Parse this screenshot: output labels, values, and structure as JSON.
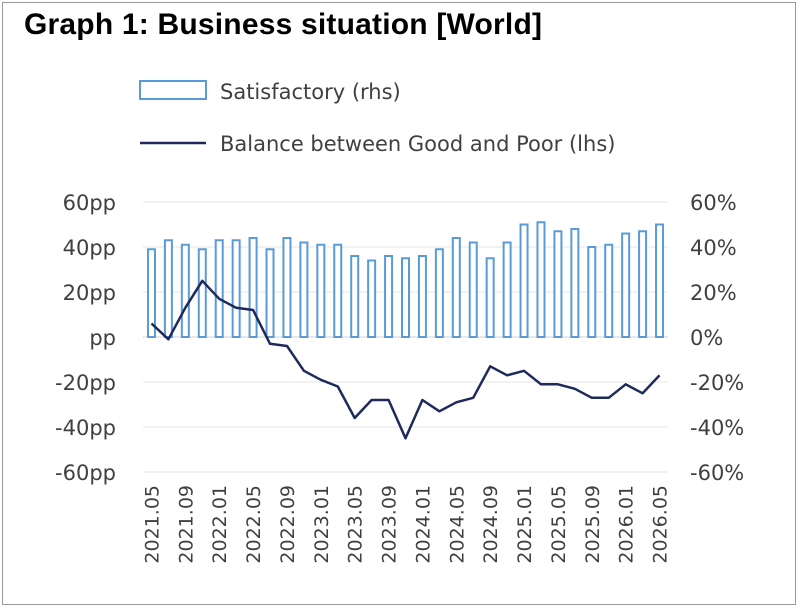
{
  "title": "Graph 1: Business situation [World]",
  "chart_data": {
    "type": "bar+line",
    "title": "Graph 1: Business situation [World]",
    "categories": [
      "2021.05",
      "2021.07",
      "2021.09",
      "2021.11",
      "2022.01",
      "2022.03",
      "2022.05",
      "2022.07",
      "2022.09",
      "2022.11",
      "2023.01",
      "2023.03",
      "2023.05",
      "2023.07",
      "2023.09",
      "2023.11",
      "2024.01",
      "2024.03",
      "2024.05",
      "2024.07",
      "2024.09",
      "2024.11",
      "2025.01",
      "2025.03",
      "2025.05",
      "2025.07",
      "2025.09",
      "2025.11",
      "2026.01",
      "2026.03",
      "2026.05"
    ],
    "x_tick_labels": [
      "2021.05",
      "2021.09",
      "2022.01",
      "2022.05",
      "2022.09",
      "2023.01",
      "2023.05",
      "2023.09",
      "2024.01",
      "2024.05",
      "2024.09",
      "2025.01",
      "2025.05",
      "2025.09",
      "2026.01",
      "2026.05"
    ],
    "series": [
      {
        "name": "Satisfactory (rhs)",
        "type": "bar",
        "axis": "right",
        "color": "#5b9bd5",
        "values": [
          39,
          43,
          41,
          39,
          43,
          43,
          44,
          39,
          44,
          42,
          41,
          41,
          36,
          34,
          36,
          35,
          36,
          39,
          44,
          42,
          35,
          42,
          50,
          51,
          47,
          48,
          40,
          41,
          46,
          47,
          50
        ]
      },
      {
        "name": "Balance between Good and Poor (lhs)",
        "type": "line",
        "axis": "left",
        "color": "#1f2a5c",
        "values": [
          6,
          -1,
          13,
          25,
          17,
          13,
          12,
          -3,
          -4,
          -15,
          -19,
          -22,
          -36,
          -28,
          -28,
          -45,
          -28,
          -33,
          -29,
          -27,
          -13,
          -17,
          -15,
          -21,
          -21,
          -23,
          -27,
          -27,
          -21,
          -25,
          -17
        ]
      }
    ],
    "left_axis": {
      "ticks": [
        "60pp",
        "40pp",
        "20pp",
        "pp",
        "-20pp",
        "-40pp",
        "-60pp"
      ],
      "ylim": [
        -60,
        60
      ]
    },
    "right_axis": {
      "ticks": [
        "60%",
        "40%",
        "20%",
        "0%",
        "-20%",
        "-40%",
        "-60%"
      ],
      "ylim": [
        -60,
        60
      ]
    },
    "grid": true,
    "legend_placement": "top-left"
  }
}
